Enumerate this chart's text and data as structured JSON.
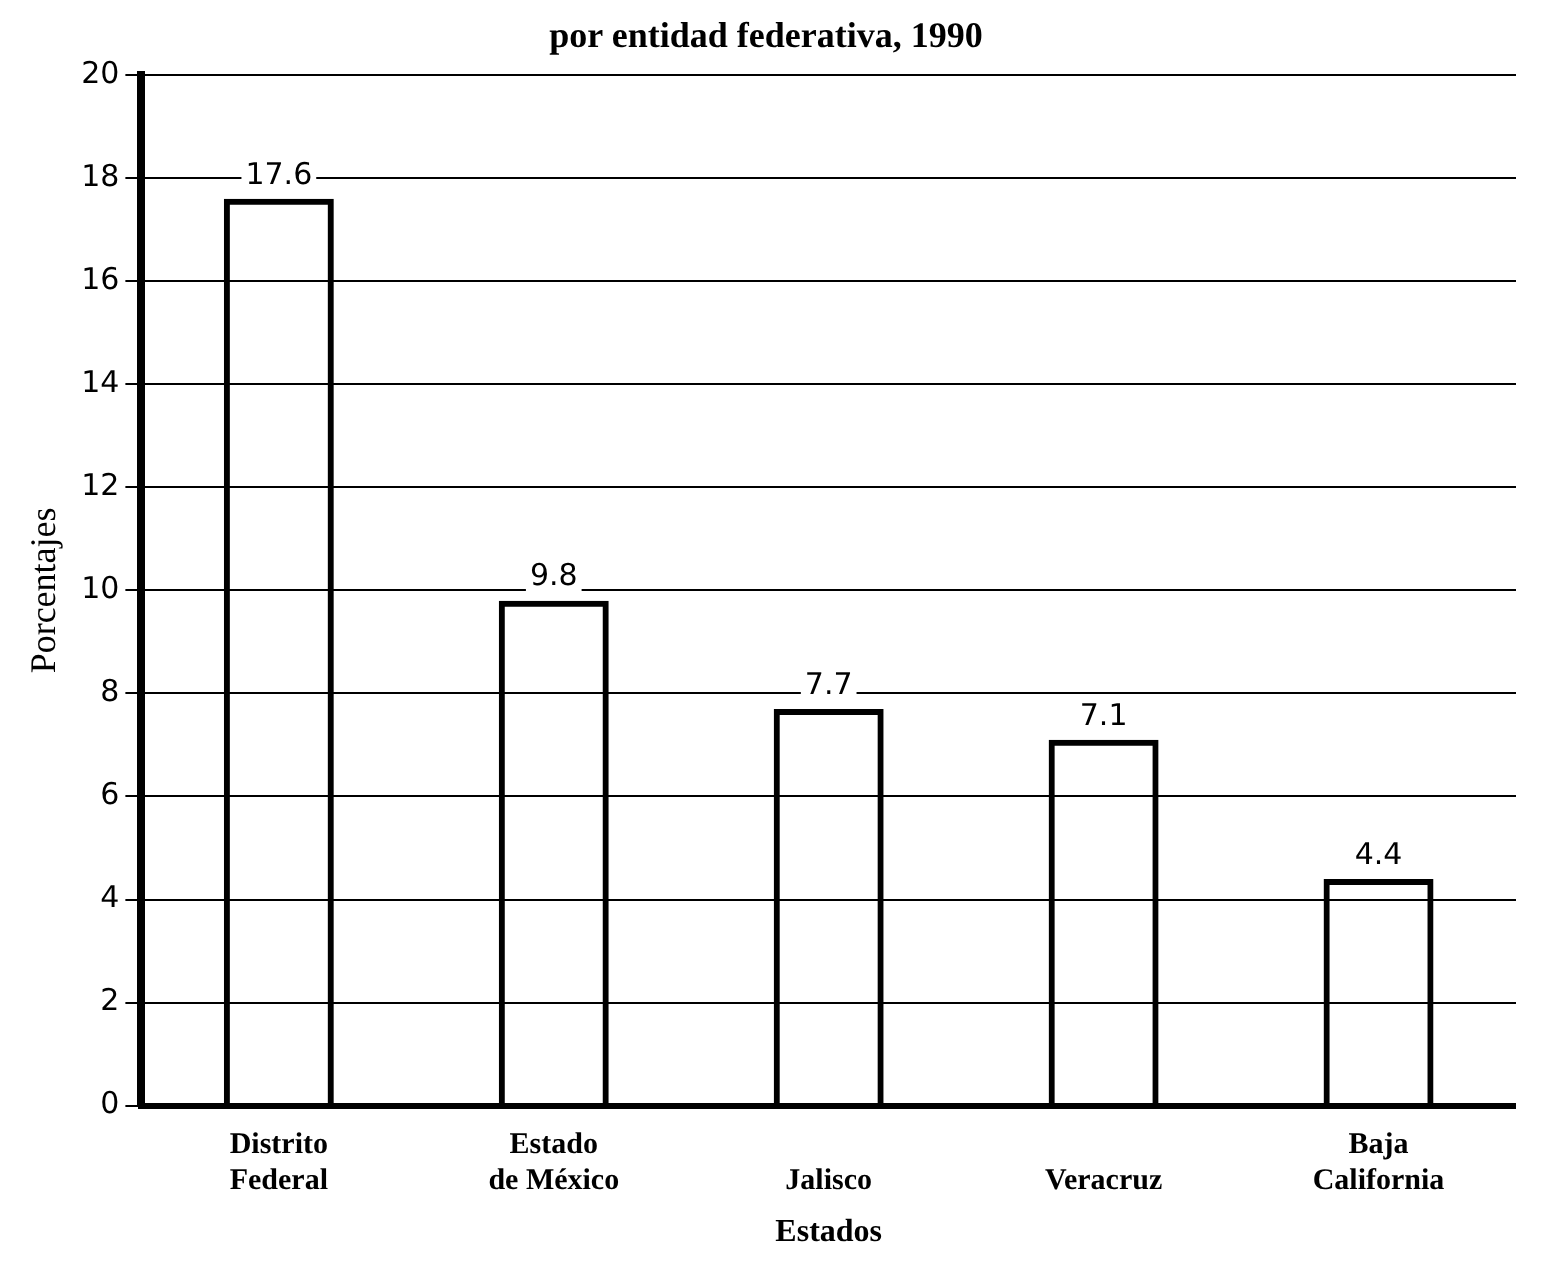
{
  "chart_data": {
    "type": "bar",
    "title": "por entidad federativa, 1990",
    "xlabel": "Estados",
    "ylabel": "Porcentajes",
    "categories": [
      "Distrito Federal",
      "Estado de México",
      "Jalisco",
      "Veracruz",
      "Baja California"
    ],
    "values": [
      17.6,
      9.8,
      7.7,
      7.1,
      4.4
    ],
    "color": "#000000",
    "ylim": [
      0,
      20
    ],
    "yticks": [
      0,
      2,
      4,
      6,
      8,
      10,
      12,
      14,
      16,
      18,
      20
    ],
    "grid": "y",
    "data_labels": true
  }
}
